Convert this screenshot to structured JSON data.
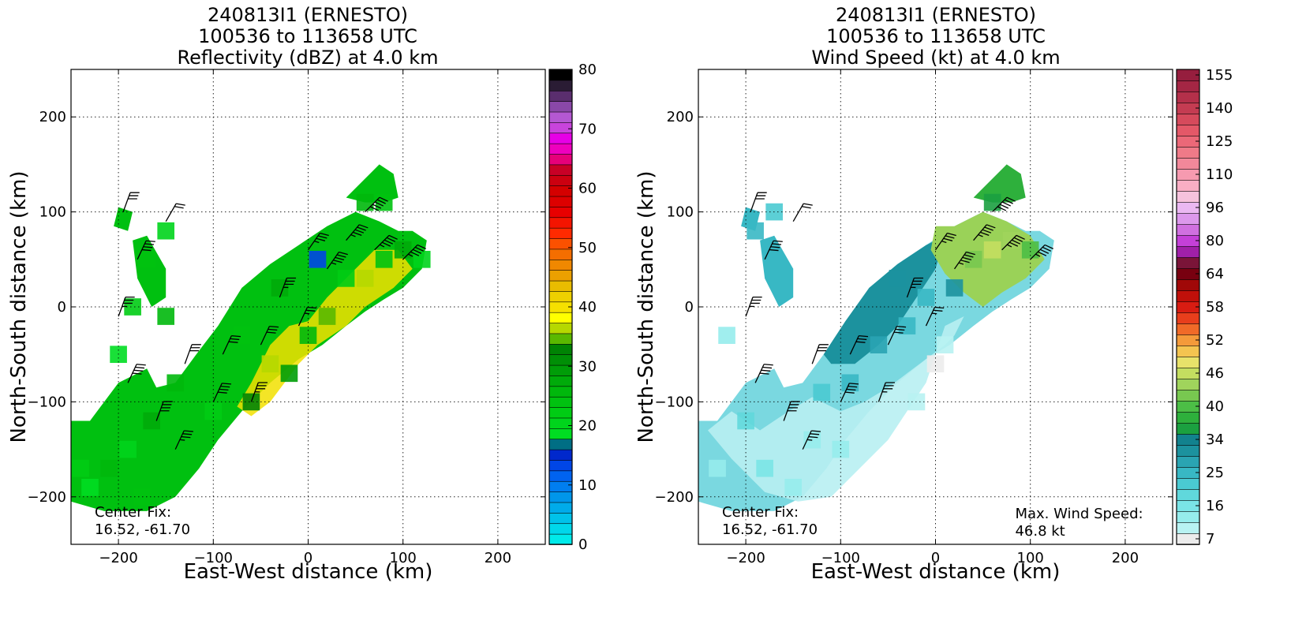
{
  "chart_data": [
    {
      "type": "heatmap",
      "title_lines": [
        "240813I1 (ERNESTO)",
        "100536 to 113658 UTC",
        "Reflectivity (dBZ) at 4.0 km"
      ],
      "xlabel": "East-West distance (km)",
      "ylabel": "North-South distance (km)",
      "xlim": [
        -250,
        250
      ],
      "ylim": [
        -250,
        250
      ],
      "xticks": [
        -200,
        -100,
        0,
        100,
        200
      ],
      "yticks": [
        -200,
        -100,
        0,
        100,
        200
      ],
      "xtick_labels": [
        "−200",
        "−100",
        "0",
        "100",
        "200"
      ],
      "ytick_labels": [
        "−200",
        "−100",
        "0",
        "100",
        "200"
      ],
      "grid": true,
      "annotation_lines": [
        "Center Fix:",
        "16.52, -61.70"
      ],
      "colorbar": {
        "min": 0,
        "max": 80,
        "tick_values": [
          0,
          10,
          20,
          30,
          40,
          50,
          60,
          70,
          80
        ],
        "tick_labels": [
          "0",
          "10",
          "20",
          "30",
          "40",
          "50",
          "60",
          "70",
          "80"
        ],
        "colors": [
          "#00eaea",
          "#00d7ea",
          "#00c2ea",
          "#00abea",
          "#0096ea",
          "#007ef0",
          "#0063f0",
          "#0046e6",
          "#0028cc",
          "#006e84",
          "#00dd22",
          "#00d41c",
          "#00cc14",
          "#00c210",
          "#00b80c",
          "#00ab0a",
          "#009d08",
          "#008f06",
          "#008304",
          "#5ab800",
          "#b6d800",
          "#ffff00",
          "#f5e000",
          "#eed000",
          "#e9bc00",
          "#eba000",
          "#f08800",
          "#f46e00",
          "#fb5100",
          "#ff2a00",
          "#f41400",
          "#e80000",
          "#dd0000",
          "#d40000",
          "#cc0010",
          "#c80026",
          "#e6007a",
          "#ee00be",
          "#e600e6",
          "#c844dc",
          "#b458d2",
          "#8a48a8",
          "#5a2e6e",
          "#2a1c34",
          "#000000"
        ]
      },
      "series": [
        {
          "name": "reflectivity",
          "cells": [
            [
              -240,
              -170,
              22
            ],
            [
              -210,
              -170,
              26
            ],
            [
              -190,
              -150,
              20
            ],
            [
              -230,
              -190,
              18
            ],
            [
              -175,
              -200,
              24
            ],
            [
              -165,
              -120,
              28
            ],
            [
              -140,
              -80,
              25
            ],
            [
              -100,
              -110,
              22
            ],
            [
              -60,
              -100,
              32
            ],
            [
              -40,
              -60,
              36
            ],
            [
              -20,
              -70,
              30
            ],
            [
              0,
              -30,
              26
            ],
            [
              20,
              -10,
              34
            ],
            [
              40,
              30,
              22
            ],
            [
              60,
              30,
              36
            ],
            [
              80,
              50,
              24
            ],
            [
              100,
              60,
              28
            ],
            [
              120,
              50,
              20
            ],
            [
              80,
              110,
              24
            ],
            [
              60,
              110,
              26
            ],
            [
              -30,
              20,
              28
            ],
            [
              -70,
              -30,
              24
            ],
            [
              -170,
              50,
              24
            ],
            [
              -150,
              80,
              20
            ],
            [
              -185,
              0,
              22
            ],
            [
              -200,
              -50,
              18
            ],
            [
              -150,
              -10,
              26
            ],
            [
              10,
              50,
              14
            ]
          ]
        },
        {
          "name": "wind barbs (kt)",
          "barbs": [
            [
              -195,
              100,
              30,
              20
            ],
            [
              -180,
              50,
              40,
              25
            ],
            [
              -200,
              -10,
              35,
              20
            ],
            [
              -190,
              -80,
              40,
              25
            ],
            [
              -160,
              -120,
              40,
              20
            ],
            [
              -140,
              -150,
              35,
              25
            ],
            [
              -130,
              -60,
              30,
              20
            ],
            [
              -100,
              -100,
              40,
              25
            ],
            [
              -90,
              -50,
              30,
              25
            ],
            [
              -60,
              -100,
              35,
              20
            ],
            [
              -50,
              -40,
              30,
              25
            ],
            [
              -30,
              10,
              35,
              20
            ],
            [
              -10,
              -20,
              25,
              25
            ],
            [
              20,
              40,
              45,
              35
            ],
            [
              40,
              70,
              45,
              40
            ],
            [
              70,
              60,
              45,
              45
            ],
            [
              100,
              50,
              45,
              45
            ],
            [
              60,
              100,
              50,
              45
            ],
            [
              -150,
              90,
              20,
              30
            ],
            [
              0,
              60,
              35,
              35
            ]
          ]
        }
      ]
    },
    {
      "type": "heatmap",
      "title_lines": [
        "240813I1 (ERNESTO)",
        "100536 to 113658 UTC",
        "Wind Speed (kt) at 4.0 km"
      ],
      "xlabel": "East-West distance (km)",
      "ylabel": "North-South distance (km)",
      "xlim": [
        -250,
        250
      ],
      "ylim": [
        -250,
        250
      ],
      "xticks": [
        -200,
        -100,
        0,
        100,
        200
      ],
      "yticks": [
        -200,
        -100,
        0,
        100,
        200
      ],
      "xtick_labels": [
        "−200",
        "−100",
        "0",
        "100",
        "200"
      ],
      "ytick_labels": [
        "−200",
        "−100",
        "0",
        "100",
        "200"
      ],
      "grid": true,
      "annotation_lines": [
        "Center Fix:",
        "16.52, -61.70"
      ],
      "max_wind_lines": [
        "Max. Wind Speed:",
        "46.8 kt"
      ],
      "colorbar": {
        "tick_labels": [
          "7",
          "16",
          "25",
          "34",
          "40",
          "46",
          "52",
          "58",
          "64",
          "80",
          "96",
          "110",
          "125",
          "140",
          "155"
        ],
        "colors": [
          "#ececec",
          "#b8f2f2",
          "#96ecec",
          "#7ae4e6",
          "#60d8dc",
          "#4acad2",
          "#38b8c4",
          "#2aa4b2",
          "#1c929e",
          "#12828e",
          "#1ba040",
          "#2eb03c",
          "#4cbe46",
          "#78c850",
          "#a0d45c",
          "#c4de60",
          "#e8e26a",
          "#f4c450",
          "#f49a3a",
          "#f06a28",
          "#e83e1c",
          "#d81c12",
          "#c0100a",
          "#a00808",
          "#780010",
          "#7a1438",
          "#a020a8",
          "#c440d8",
          "#d070e0",
          "#dc98ec",
          "#eab8f2",
          "#f6c2dc",
          "#f9aec4",
          "#f69ab0",
          "#f2889a",
          "#ef7a88",
          "#eb6878",
          "#e45868",
          "#d64a5c",
          "#c43c52",
          "#b4304a",
          "#a42644",
          "#961e3e"
        ]
      },
      "series": [
        {
          "name": "wind speed",
          "cells": [
            [
              -230,
              -170,
              14
            ],
            [
              -200,
              -120,
              18
            ],
            [
              -180,
              -170,
              16
            ],
            [
              -150,
              -190,
              12
            ],
            [
              -130,
              -140,
              14
            ],
            [
              -120,
              -90,
              22
            ],
            [
              -90,
              -80,
              26
            ],
            [
              -60,
              -40,
              28
            ],
            [
              -30,
              -20,
              24
            ],
            [
              -10,
              10,
              26
            ],
            [
              10,
              -40,
              10
            ],
            [
              0,
              -60,
              8
            ],
            [
              -20,
              -100,
              10
            ],
            [
              20,
              20,
              30
            ],
            [
              40,
              50,
              42
            ],
            [
              60,
              60,
              46
            ],
            [
              80,
              70,
              44
            ],
            [
              100,
              60,
              40
            ],
            [
              60,
              110,
              36
            ],
            [
              -40,
              30,
              30
            ],
            [
              -160,
              20,
              24
            ],
            [
              -190,
              80,
              26
            ],
            [
              -170,
              100,
              22
            ],
            [
              -220,
              -30,
              14
            ],
            [
              -100,
              -150,
              12
            ]
          ]
        },
        {
          "name": "wind barbs (kt)",
          "barbs": [
            [
              -195,
              100,
              30,
              20
            ],
            [
              -180,
              50,
              40,
              25
            ],
            [
              -200,
              -10,
              35,
              20
            ],
            [
              -190,
              -80,
              40,
              25
            ],
            [
              -160,
              -120,
              40,
              20
            ],
            [
              -140,
              -150,
              35,
              25
            ],
            [
              -130,
              -60,
              30,
              20
            ],
            [
              -100,
              -100,
              40,
              25
            ],
            [
              -90,
              -50,
              30,
              25
            ],
            [
              -60,
              -100,
              35,
              20
            ],
            [
              -50,
              -40,
              30,
              25
            ],
            [
              -30,
              10,
              35,
              20
            ],
            [
              -10,
              -20,
              25,
              25
            ],
            [
              20,
              40,
              45,
              35
            ],
            [
              40,
              70,
              45,
              40
            ],
            [
              70,
              60,
              45,
              45
            ],
            [
              100,
              50,
              45,
              45
            ],
            [
              60,
              100,
              50,
              45
            ],
            [
              -150,
              90,
              20,
              30
            ],
            [
              0,
              60,
              35,
              35
            ]
          ]
        }
      ]
    }
  ]
}
